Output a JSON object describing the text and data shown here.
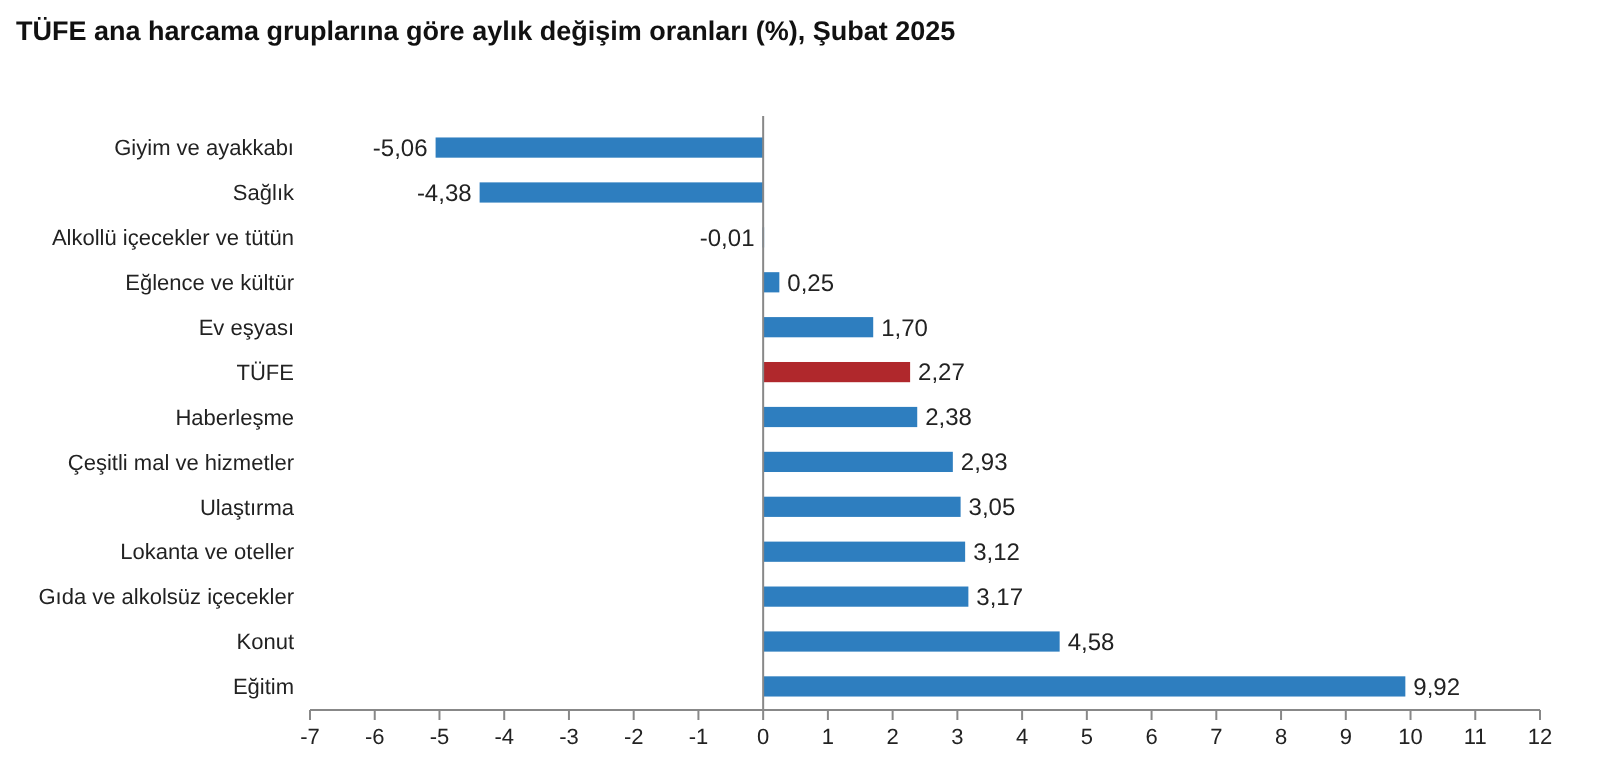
{
  "chart_data": {
    "type": "bar",
    "orientation": "horizontal",
    "title": "TÜFE ana harcama gruplarına göre aylık değişim oranları (%), Şubat 2025",
    "categories": [
      "Giyim ve ayakkabı",
      "Sağlık",
      "Alkollü içecekler ve tütün",
      "Eğlence ve kültür",
      "Ev eşyası",
      "TÜFE",
      "Haberleşme",
      "Çeşitli mal ve hizmetler",
      "Ulaştırma",
      "Lokanta ve oteller",
      "Gıda ve alkolsüz içecekler",
      "Konut",
      "Eğitim"
    ],
    "values": [
      -5.06,
      -4.38,
      -0.01,
      0.25,
      1.7,
      2.27,
      2.38,
      2.93,
      3.05,
      3.12,
      3.17,
      4.58,
      9.92
    ],
    "value_labels": [
      "-5,06",
      "-4,38",
      "-0,01",
      "0,25",
      "1,70",
      "2,27",
      "2,38",
      "2,93",
      "3,05",
      "3,12",
      "3,17",
      "4,58",
      "9,92"
    ],
    "colors": [
      "#2e7ebf",
      "#2e7ebf",
      "#2e7ebf",
      "#2e7ebf",
      "#2e7ebf",
      "#b0282c",
      "#2e7ebf",
      "#2e7ebf",
      "#2e7ebf",
      "#2e7ebf",
      "#2e7ebf",
      "#2e7ebf",
      "#2e7ebf"
    ],
    "xlim": [
      -7,
      12
    ],
    "xticks": [
      -7,
      -6,
      -5,
      -4,
      -3,
      -2,
      -1,
      0,
      1,
      2,
      3,
      4,
      5,
      6,
      7,
      8,
      9,
      10,
      11,
      12
    ]
  }
}
